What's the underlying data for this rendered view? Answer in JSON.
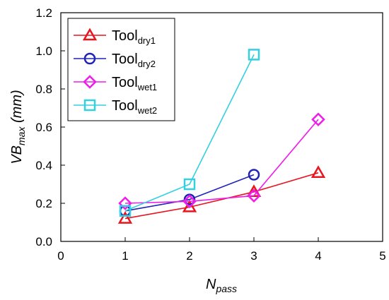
{
  "chart_data": {
    "type": "line",
    "xlabel": {
      "main": "N",
      "sub": "pass"
    },
    "ylabel": {
      "main": "VB",
      "sub": "max",
      "suffix": " (mm)"
    },
    "xlim": [
      0,
      5
    ],
    "ylim": [
      0,
      1.2
    ],
    "xticks": [
      0,
      1,
      2,
      3,
      4,
      5
    ],
    "yticks": [
      0.0,
      0.2,
      0.4,
      0.6,
      0.8,
      1.0,
      1.2
    ],
    "xtick_labels": [
      "0",
      "1",
      "2",
      "3",
      "4",
      "5"
    ],
    "ytick_labels": [
      "0.0",
      "0.2",
      "0.4",
      "0.6",
      "0.8",
      "1.0",
      "1.2"
    ],
    "grid": false,
    "legend_position": "top-left",
    "series": [
      {
        "name": "Tool",
        "sub": "dry1",
        "marker": "triangle",
        "color": "#e8141e",
        "x": [
          1,
          2,
          3,
          4
        ],
        "y": [
          0.12,
          0.18,
          0.26,
          0.36
        ]
      },
      {
        "name": "Tool",
        "sub": "dry2",
        "marker": "circle",
        "color": "#1f24b8",
        "x": [
          1,
          2,
          3
        ],
        "y": [
          0.16,
          0.22,
          0.35
        ]
      },
      {
        "name": "Tool",
        "sub": "wet1",
        "marker": "diamond",
        "color": "#ee1ee8",
        "x": [
          1,
          2,
          3,
          4
        ],
        "y": [
          0.2,
          0.21,
          0.24,
          0.64
        ]
      },
      {
        "name": "Tool",
        "sub": "wet2",
        "marker": "square",
        "color": "#33d0e0",
        "x": [
          1,
          2,
          3
        ],
        "y": [
          0.16,
          0.3,
          0.98
        ]
      }
    ]
  }
}
